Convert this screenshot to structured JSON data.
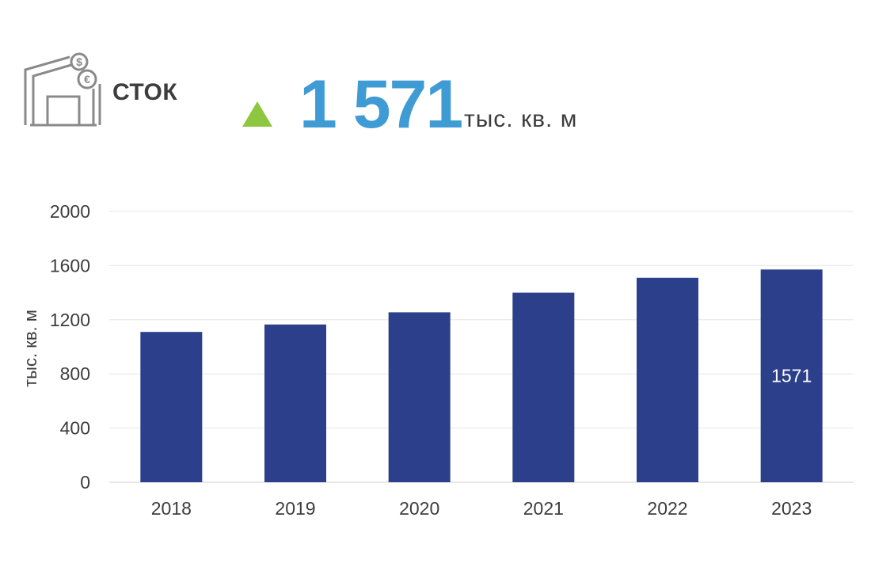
{
  "header": {
    "label": "СТОК",
    "value": "1 571",
    "unit": "тыс. кв. м",
    "trend": "up",
    "trend_color": "#8dc63f",
    "value_color": "#3e9bd4",
    "icon": "warehouse-currency-icon"
  },
  "chart_data": {
    "type": "bar",
    "categories": [
      "2018",
      "2019",
      "2020",
      "2021",
      "2022",
      "2023"
    ],
    "values": [
      1110,
      1165,
      1255,
      1400,
      1510,
      1571
    ],
    "ylabel": "тыс. кв. м",
    "ylim": [
      0,
      2000
    ],
    "yticks": [
      0,
      400,
      800,
      1200,
      1600,
      2000
    ],
    "data_labels": [
      {
        "category": "2023",
        "text": "1571"
      }
    ],
    "bar_color": "#2b3f8a",
    "grid": true,
    "legend": "none"
  }
}
